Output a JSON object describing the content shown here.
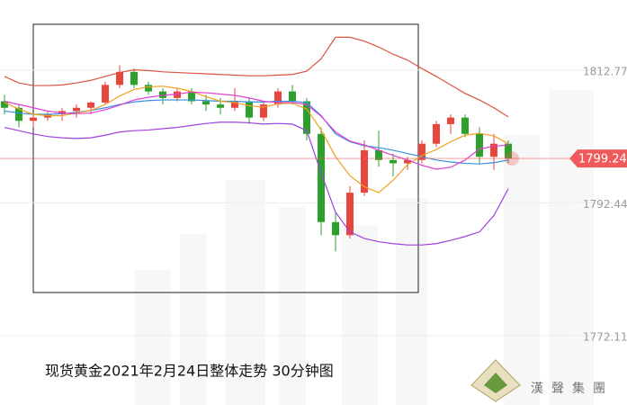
{
  "chart_data": {
    "type": "candlestick",
    "title": "现货黄金2021年2月24日整体走势  30分钟图",
    "logo": "漢聲集團",
    "ylim": [
      1761.5,
      1823.5
    ],
    "yticks": [
      1812.77,
      1792.44,
      1772.11
    ],
    "grid": true,
    "last_price": 1799.24,
    "up_color": "#e8453c",
    "down_color": "#2ca02c",
    "last_price_color": "#f05a5a",
    "candles": {
      "open": [
        1808,
        1807,
        1805,
        1805.5,
        1806,
        1806.5,
        1807,
        1807.8,
        1810.5,
        1812.5,
        1810.5,
        1809.5,
        1808.5,
        1809.5,
        1808,
        1807.5,
        1807,
        1808,
        1805.5,
        1807.5,
        1809.5,
        1808,
        1803,
        1789.5,
        1787.5,
        1794,
        1800.5,
        1799,
        1798.5,
        1799,
        1801.5,
        1804.5,
        1805.5,
        1803,
        1799.5,
        1801.5
      ],
      "high": [
        1809,
        1807.5,
        1806,
        1806.5,
        1807,
        1807.5,
        1808,
        1811,
        1813.5,
        1813,
        1811,
        1810,
        1810,
        1810,
        1809,
        1808.5,
        1810,
        1808.5,
        1808,
        1810,
        1810.5,
        1808.5,
        1804,
        1791,
        1795,
        1802,
        1803.5,
        1800,
        1799.5,
        1802,
        1805,
        1806,
        1806,
        1804,
        1803,
        1802
      ],
      "low": [
        1806,
        1804,
        1804,
        1805,
        1805,
        1805.5,
        1806,
        1807.5,
        1810,
        1810,
        1809,
        1807.5,
        1808,
        1807.5,
        1806.5,
        1806,
        1806.5,
        1804.5,
        1805,
        1807,
        1807.5,
        1802,
        1787.5,
        1785,
        1787,
        1793.5,
        1798,
        1796.5,
        1797.5,
        1798.5,
        1801,
        1803,
        1802.5,
        1798.5,
        1797.5,
        1798.5
      ],
      "close": [
        1807,
        1805,
        1805.5,
        1806,
        1806.5,
        1807,
        1807.8,
        1810.5,
        1812.5,
        1810.5,
        1809.5,
        1808.5,
        1809.5,
        1808,
        1807.5,
        1807,
        1808,
        1805.5,
        1807.5,
        1809.5,
        1808,
        1803,
        1789.5,
        1787.5,
        1794,
        1800.5,
        1799,
        1798.5,
        1799,
        1801.5,
        1804.5,
        1805.5,
        1803,
        1799.5,
        1801.5,
        1799.24
      ]
    },
    "lines": [
      {
        "color": "#d9533f",
        "values": [
          1811.8,
          1810.8,
          1810.4,
          1810.4,
          1810.5,
          1810.8,
          1811.2,
          1811.8,
          1812.4,
          1812.8,
          1812.7,
          1812.5,
          1812.4,
          1812.3,
          1812.2,
          1812.1,
          1812,
          1811.9,
          1811.9,
          1812,
          1812.1,
          1812.6,
          1814.5,
          1817.8,
          1817.8,
          1817.2,
          1816.3,
          1815.2,
          1814.3,
          1813,
          1811.8,
          1810.5,
          1809.2,
          1808.2,
          1807,
          1805.6
        ]
      },
      {
        "color": "#a040e0",
        "values": [
          1804,
          1803.5,
          1803,
          1802.6,
          1802.4,
          1802.3,
          1802.4,
          1802.8,
          1803.3,
          1803.5,
          1803.6,
          1803.8,
          1804,
          1804.3,
          1804.6,
          1804.8,
          1804.8,
          1804.7,
          1804.5,
          1804.6,
          1804.5,
          1803.5,
          1797,
          1791,
          1788,
          1787,
          1786.5,
          1786.2,
          1786,
          1786,
          1786.2,
          1786.7,
          1787.3,
          1788,
          1790.5,
          1794.6
        ]
      },
      {
        "color": "#3a8fe0",
        "values": [
          1806.5,
          1806.2,
          1806,
          1806,
          1806.1,
          1806.3,
          1806.6,
          1807,
          1807.5,
          1807.9,
          1808.1,
          1808.2,
          1808.2,
          1808.2,
          1808.1,
          1808,
          1808,
          1807.9,
          1807.9,
          1808,
          1808,
          1807.8,
          1805.8,
          1803,
          1801.8,
          1801.2,
          1800.9,
          1800.5,
          1800,
          1799.5,
          1799,
          1798.7,
          1798.5,
          1798.4,
          1798.6,
          1799
        ]
      },
      {
        "color": "#f0a020",
        "values": [
          1807.8,
          1806.8,
          1806,
          1805.8,
          1805.8,
          1806.2,
          1806.6,
          1807.5,
          1808.8,
          1809.8,
          1810.2,
          1810.3,
          1810,
          1809.5,
          1808.7,
          1808,
          1807.8,
          1807.3,
          1807.1,
          1807.6,
          1807.7,
          1806.8,
          1803.6,
          1799.5,
          1796.6,
          1794.9,
          1794,
          1795.9,
          1798.3,
          1799.7,
          1800.6,
          1801.8,
          1802.8,
          1803.1,
          1802.7,
          1801.5
        ]
      },
      {
        "color": "#e040d0",
        "values": [
          1808,
          1807.5,
          1807,
          1806.5,
          1806.2,
          1806.1,
          1806.2,
          1806.7,
          1807.4,
          1808.2,
          1808.6,
          1808.9,
          1809.1,
          1809.4,
          1809.3,
          1809.1,
          1808.9,
          1808.5,
          1808,
          1807.8,
          1807.8,
          1807.5,
          1805.7,
          1803.3,
          1801.9,
          1801.3,
          1800.5,
          1799.7,
          1799,
          1798.2,
          1797.6,
          1797.9,
          1799,
          1800.7,
          1801.1,
          1801.3
        ]
      }
    ]
  }
}
